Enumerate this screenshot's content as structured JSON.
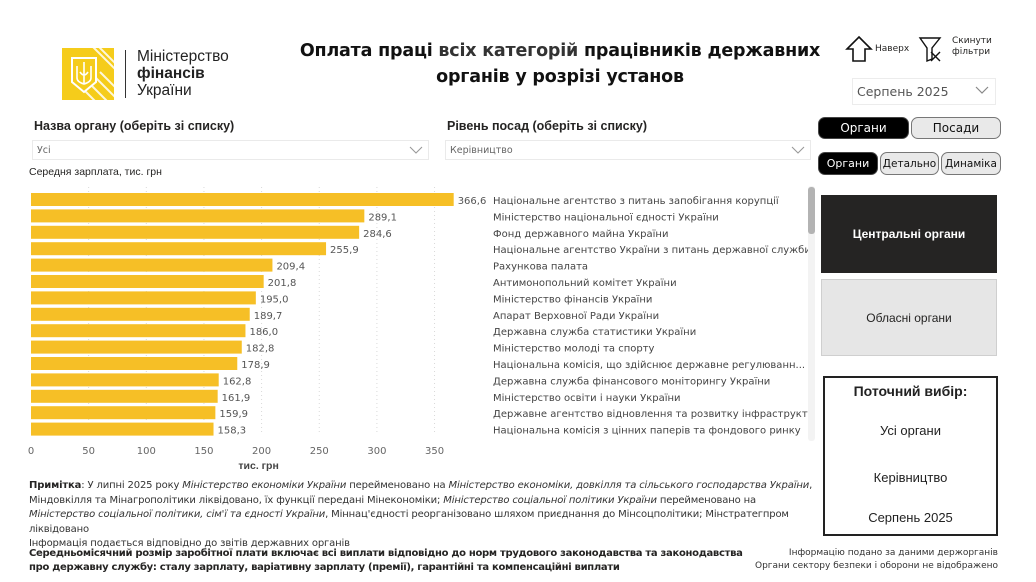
{
  "logo": {
    "line1": "Міністерство",
    "line2": "фінансів",
    "line3": "України",
    "brand_color": "#f5cc1b"
  },
  "title": {
    "part1": "Оплата праці ",
    "part2": "всіх категорій",
    "part3": " працівників державних органів у розрізі установ"
  },
  "toolbar": {
    "top_label": "Наверх",
    "top_icon": "arrow-up-icon",
    "reset_label_1": "Скинути",
    "reset_label_2": "фільтри",
    "reset_icon": "clear-filter-icon"
  },
  "month_slicer": {
    "value": "Серпень 2025"
  },
  "slicers": {
    "organ": {
      "label": "Назва органу (оберіть зі списку)",
      "value": "Усі"
    },
    "position": {
      "label": "Рівень посад (оберіть зі списку)",
      "value": "Керівництво"
    }
  },
  "toggles": {
    "primary": [
      {
        "label": "Органи",
        "active": true
      },
      {
        "label": "Посади",
        "active": false
      }
    ],
    "secondary": [
      {
        "label": "Органи",
        "active": true
      },
      {
        "label": "Детально",
        "active": false
      },
      {
        "label": "Динаміка",
        "active": false
      }
    ]
  },
  "org_types": [
    {
      "label": "Центральні органи",
      "active": true
    },
    {
      "label": "Обласні органи",
      "active": false
    }
  ],
  "current_selection": {
    "title": "Поточний вибір:",
    "organ": "Усі органи",
    "position": "Керівництво",
    "month": "Серпень 2025"
  },
  "chart_data": {
    "type": "bar",
    "orientation": "horizontal",
    "title": "Середня зарплата, тис. грн",
    "xlabel": "тис. грн",
    "ylabel": "",
    "xlim": [
      0,
      370
    ],
    "xticks": [
      0,
      50,
      100,
      150,
      200,
      250,
      300,
      350
    ],
    "grid": true,
    "bar_color": "#f6bf26",
    "categories": [
      "Національне агентство з питань запобігання корупції",
      "Міністерство національної єдності України",
      "Фонд державного майна України",
      "Національне агентство України з питань державної служби",
      "Рахункова палата",
      "Антимонопольний комітет України",
      "Міністерство фінансів України",
      "Апарат Верховної Ради України",
      "Державна служба статистики України",
      "Міністерство молоді та спорту",
      "Національна комісія, що здійснює державне регулюванн...",
      "Державна служба фінансового моніторингу України",
      "Міністерство освіти і науки України",
      "Державне агентство відновлення та розвитку інфраструкт...",
      "Національна комісія з цінних паперів та фондового ринку"
    ],
    "values": [
      366.6,
      289.1,
      284.6,
      255.9,
      209.4,
      201.8,
      195.0,
      189.7,
      186.0,
      182.8,
      178.9,
      162.8,
      161.9,
      159.9,
      158.3
    ],
    "value_labels": [
      "366,6",
      "289,1",
      "284,6",
      "255,9",
      "209,4",
      "201,8",
      "195,0",
      "189,7",
      "186,0",
      "182,8",
      "178,9",
      "162,8",
      "161,9",
      "159,9",
      "158,3"
    ]
  },
  "note": {
    "label": "Примітка",
    "t1": ": У липні 2025 року ",
    "i1": "Міністерство економіки України",
    "t2": " перейменовано на ",
    "i2": "Міністерство економіки, довкілля та сільського господарства України",
    "t3": ", Міндовкілля та Мінагрополітики ліквідовано, їх функції передані Мінекономіки; ",
    "i3": "Міністерство соціальної політики України",
    "t4": " перейменовано на ",
    "i4": "Міністерство соціальної політики, сім'ї та єдності України",
    "t5": ", Міннац'єдності реорганізовано шляхом приєднання до Мінсоцполітики; Мінстратегпром ліквідовано",
    "line_last": "Інформація подається відповідно до звітів державних органів"
  },
  "footer": {
    "left": "Середньомісячний розмір заробітної плати включає всі виплати відповідно до норм трудового законодавства та законодавства про державну службу: сталу зарплату, варіативну зарплату (премії), гарантійні та компенсаційні виплати",
    "right_1": "Інформацію подано за даними держорганів",
    "right_2": "Органи сектору безпеки і оборони не відображено"
  }
}
